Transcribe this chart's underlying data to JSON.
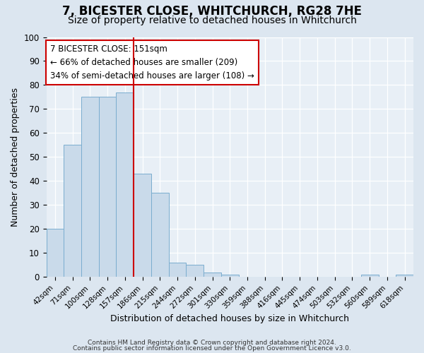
{
  "title": "7, BICESTER CLOSE, WHITCHURCH, RG28 7HE",
  "subtitle": "Size of property relative to detached houses in Whitchurch",
  "xlabel": "Distribution of detached houses by size in Whitchurch",
  "ylabel": "Number of detached properties",
  "bar_labels": [
    "42sqm",
    "71sqm",
    "100sqm",
    "128sqm",
    "157sqm",
    "186sqm",
    "215sqm",
    "244sqm",
    "272sqm",
    "301sqm",
    "330sqm",
    "359sqm",
    "388sqm",
    "416sqm",
    "445sqm",
    "474sqm",
    "503sqm",
    "532sqm",
    "560sqm",
    "589sqm",
    "618sqm"
  ],
  "bar_values": [
    20,
    55,
    75,
    75,
    77,
    43,
    35,
    6,
    5,
    2,
    1,
    0,
    0,
    0,
    0,
    0,
    0,
    0,
    1,
    0,
    1
  ],
  "bar_color": "#c9daea",
  "bar_edgecolor": "#7aadcf",
  "property_line_x": 4.5,
  "property_line_color": "#cc0000",
  "annotation_text": "7 BICESTER CLOSE: 151sqm\n← 66% of detached houses are smaller (209)\n34% of semi-detached houses are larger (108) →",
  "annotation_box_color": "#ffffff",
  "annotation_box_edgecolor": "#cc0000",
  "ylim": [
    0,
    100
  ],
  "yticks": [
    0,
    10,
    20,
    30,
    40,
    50,
    60,
    70,
    80,
    90,
    100
  ],
  "footer_line1": "Contains HM Land Registry data © Crown copyright and database right 2024.",
  "footer_line2": "Contains public sector information licensed under the Open Government Licence v3.0.",
  "bg_color": "#dce6f0",
  "plot_bg_color": "#e8eff6",
  "title_fontsize": 12,
  "subtitle_fontsize": 10,
  "annotation_fontsize": 8.5
}
